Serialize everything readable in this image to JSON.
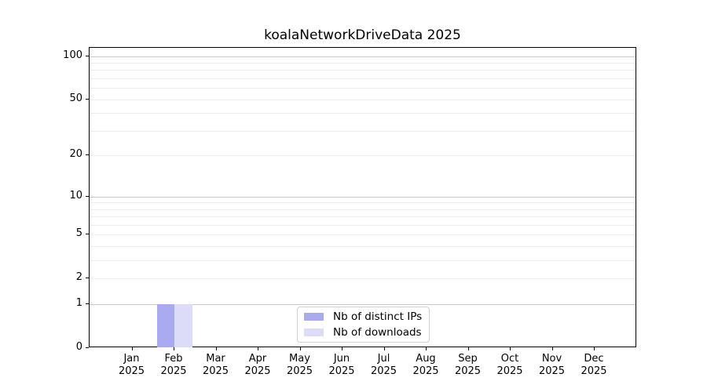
{
  "figure": {
    "title": "koalaNetworkDriveData 2025"
  },
  "colors": {
    "background": "#ffffff",
    "spine": "#000000",
    "text": "#000000",
    "grid_major": "#c6c6c6",
    "grid_minor": "#ededed",
    "legend_border": "#d0d0d0",
    "bar_distinct_ips": "#aaaaf0",
    "bar_downloads": "#dcdcf8"
  },
  "chart_data": {
    "type": "bar",
    "title": "koalaNetworkDriveData 2025",
    "x_categories": [
      "Jan 2025",
      "Feb 2025",
      "Mar 2025",
      "Apr 2025",
      "May 2025",
      "Jun 2025",
      "Jul 2025",
      "Aug 2025",
      "Sep 2025",
      "Oct 2025",
      "Nov 2025",
      "Dec 2025"
    ],
    "series": [
      {
        "name": "Nb of distinct IPs",
        "color": "#aaaaf0",
        "values": [
          0,
          1,
          0,
          0,
          0,
          0,
          0,
          0,
          0,
          0,
          0,
          0
        ]
      },
      {
        "name": "Nb of downloads",
        "color": "#dcdcf8",
        "values": [
          0,
          1,
          0,
          0,
          0,
          0,
          0,
          0,
          0,
          0,
          0,
          0
        ]
      }
    ],
    "y_axis": {
      "scale": "log1p",
      "tick_values": [
        0,
        1,
        2,
        5,
        10,
        20,
        50,
        100
      ],
      "tick_labels": [
        "0",
        "1",
        "2",
        "5",
        "10",
        "20",
        "50",
        "100"
      ],
      "major_gridlines": [
        1,
        10,
        100
      ],
      "minor_gridlines": [
        2,
        3,
        4,
        5,
        6,
        7,
        8,
        9,
        20,
        30,
        40,
        50,
        60,
        70,
        80,
        90
      ],
      "ymax": 114
    },
    "grid": true,
    "legend": {
      "position": "lower center",
      "entries": [
        "Nb of distinct IPs",
        "Nb of downloads"
      ]
    }
  }
}
